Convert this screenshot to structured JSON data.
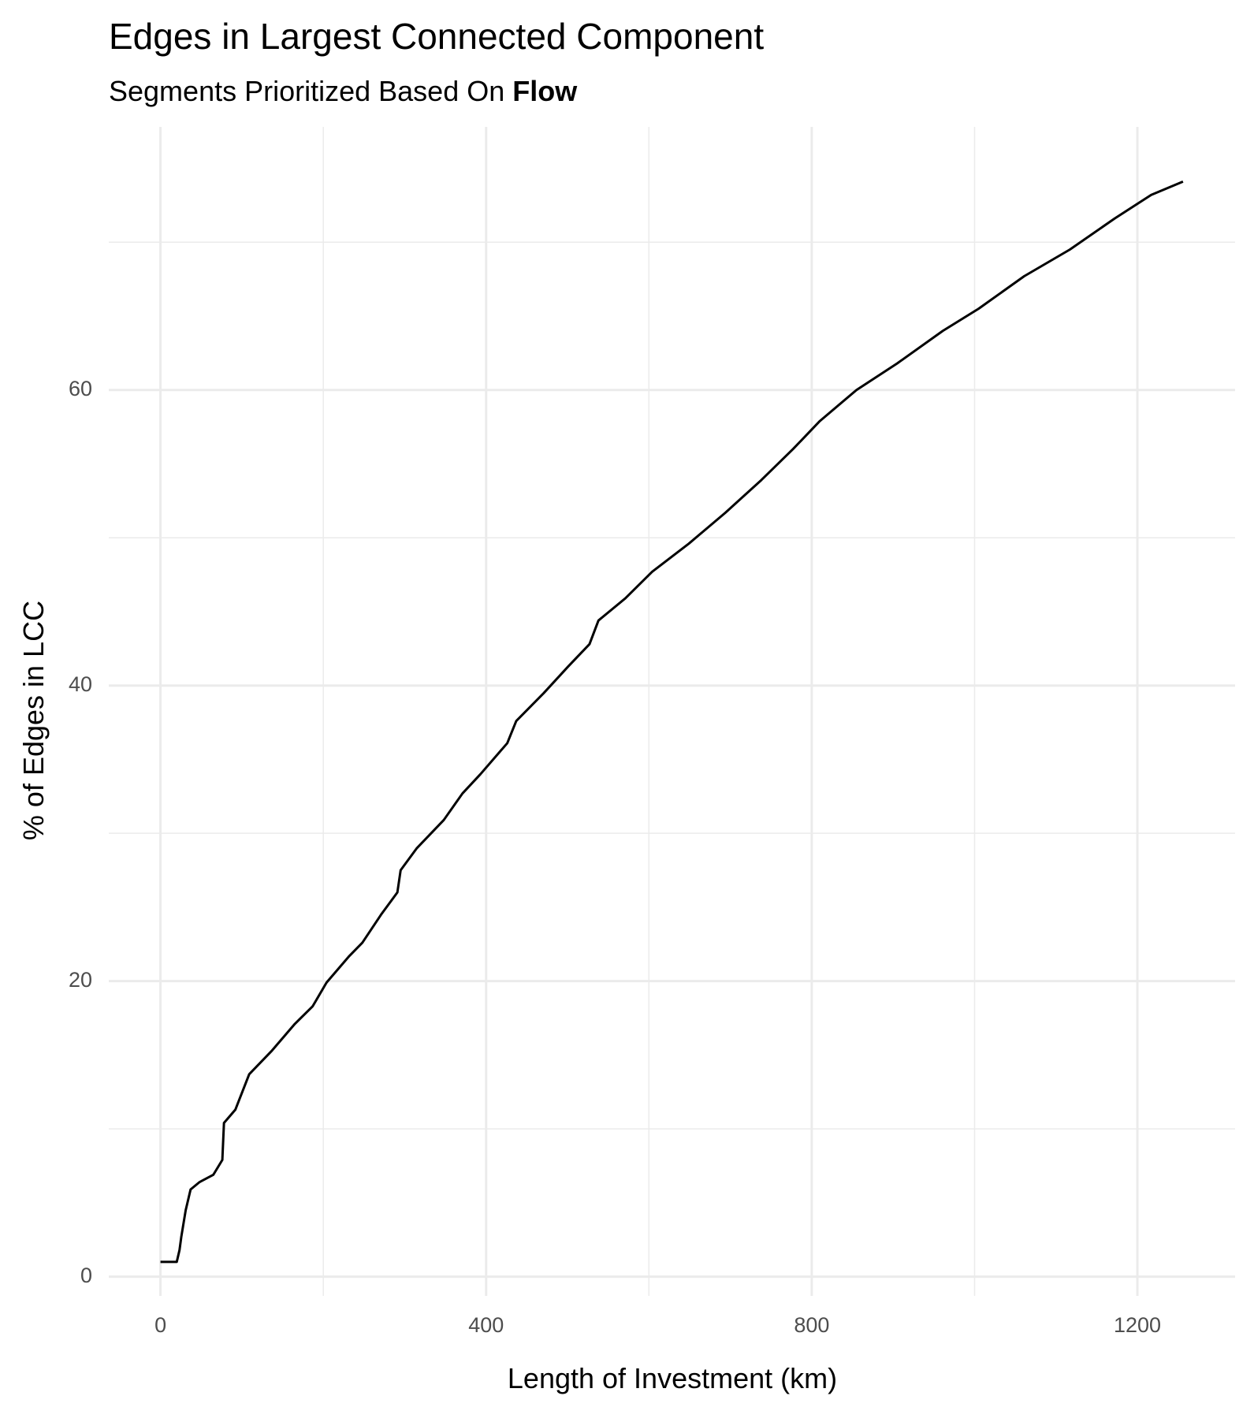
{
  "chart_data": {
    "type": "line",
    "title": "Edges in Largest Connected Component",
    "subtitle": "Segments Prioritized Based On",
    "subtitle_emphasis": "Flow",
    "x_label": "Length of Investment (km)",
    "y_label": "% of Edges in LCC",
    "xlim": [
      -63.5,
      1320
    ],
    "ylim": [
      -1.3,
      77.8
    ],
    "xticks": [
      0,
      400,
      800,
      1200
    ],
    "yticks": [
      0,
      20,
      40,
      60
    ],
    "x_minor_ticks": [
      200,
      600,
      1000
    ],
    "y_minor_ticks": [
      10,
      30,
      50,
      70
    ],
    "grid": true,
    "series": [
      {
        "color": "#000000",
        "x": [
          0,
          20,
          23.4,
          25.6,
          31,
          37,
          48,
          65,
          76,
          78,
          92,
          109,
          137,
          165,
          187,
          204,
          232,
          248,
          271,
          291,
          295,
          315,
          348,
          371,
          393,
          426,
          437,
          471,
          501,
          527,
          538,
          571,
          604,
          649,
          694,
          738,
          777,
          810,
          855,
          905,
          961,
          1005,
          1061,
          1117,
          1172,
          1217,
          1256
        ],
        "values": [
          1,
          1,
          1.8,
          2.7,
          4.5,
          5.9,
          6.4,
          6.9,
          7.9,
          10.4,
          11.3,
          13.7,
          15.3,
          17.1,
          18.3,
          19.9,
          21.7,
          22.6,
          24.5,
          26,
          27.5,
          29,
          30.9,
          32.7,
          34,
          36.1,
          37.6,
          39.5,
          41.3,
          42.8,
          44.4,
          45.9,
          47.7,
          49.6,
          51.7,
          53.9,
          56,
          57.9,
          60,
          61.8,
          64,
          65.5,
          67.7,
          69.5,
          71.6,
          73.2,
          74.1
        ]
      }
    ]
  }
}
